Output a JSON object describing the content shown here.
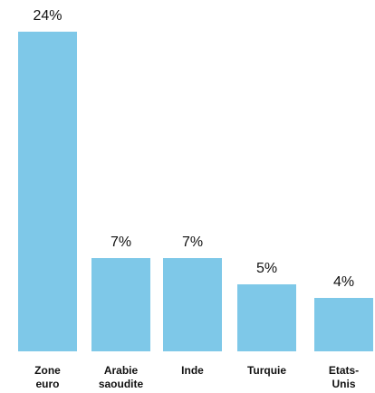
{
  "chart_data": {
    "type": "bar",
    "categories": [
      "Zone euro",
      "Arabie saoudite",
      "Inde",
      "Turquie",
      "Etats-Unis"
    ],
    "values": [
      24,
      7,
      7,
      5,
      4
    ],
    "value_labels": [
      "24%",
      "7%",
      "7%",
      "5%",
      "4%"
    ],
    "color": "#7ec8e8"
  }
}
